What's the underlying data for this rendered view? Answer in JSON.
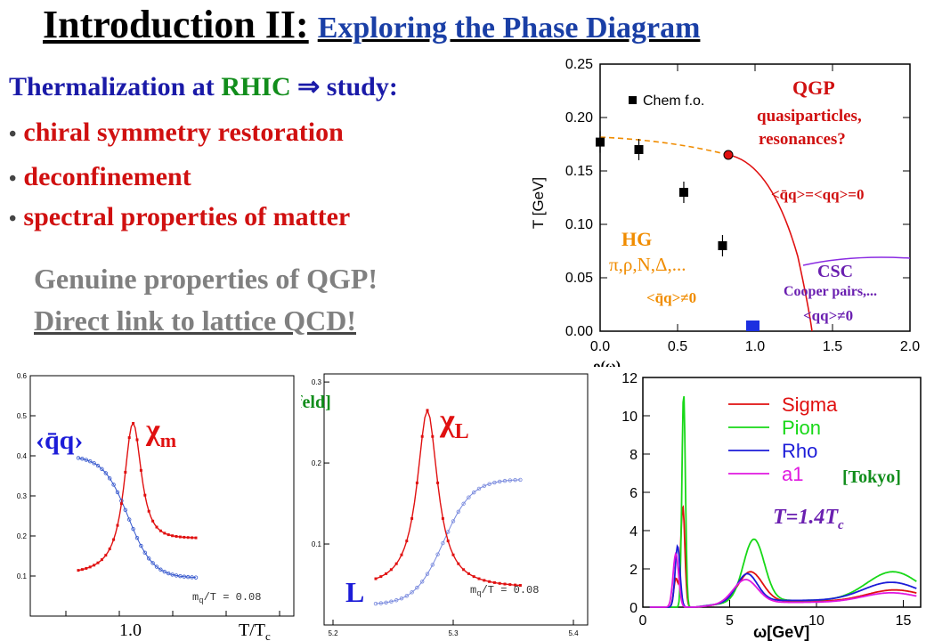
{
  "title": {
    "main": "Introduction II:",
    "sub": "Exploring the Phase Diagram"
  },
  "intro": {
    "heading_a": "Thermalization at ",
    "heading_rhic": "RHIC",
    "heading_arrow": "⇒",
    "heading_b": " study:",
    "bullets": [
      "chiral symmetry restoration",
      "deconfinement",
      "spectral properties of matter"
    ],
    "gray_lines": [
      "Genuine properties of QGP!",
      "Direct link to lattice QCD!"
    ]
  },
  "phase": {
    "ylabel": "T [GeV]",
    "xlabel": "ρ(ω)",
    "legend": "Chem f.o.",
    "qgp": "QGP",
    "qgp_sub1": "quasiparticles,",
    "qgp_sub2": "resonances?",
    "qgp_cond": "<q̄q>=<qq>=0",
    "hg": "HG",
    "hg_sub": "π,ρ,N,Δ,...",
    "hg_cond": "<q̄q>≠0",
    "csc": "CSC",
    "csc_sub": "Cooper pairs,...",
    "csc_cond": "<qq>≠0",
    "colors": {
      "qgp": "#d01010",
      "hg": "#f08c00",
      "csc": "#6a1fb0"
    }
  },
  "lattice_left": {
    "cond_label": "‹q̄q›",
    "chi_label": "χ",
    "chi_sub": "m",
    "mass_note": "m",
    "mass_note_sub": "q",
    "mass_note_rest": "/T = 0.08",
    "x_tick": "1.0",
    "x_label": "T/T",
    "x_label_sub": "c"
  },
  "lattice_mid": {
    "source": "[Bielefeld]",
    "chi_label": "χ",
    "chi_sub": "L",
    "poly_label": "L",
    "mass_note": "m",
    "mass_note_sub": "q",
    "mass_note_rest": "/T = 0.08"
  },
  "spectral": {
    "source": "[Tokyo]",
    "temp": "T=1.4T",
    "temp_sub": "c",
    "xlabel": "ω[GeV]",
    "legend": [
      {
        "name": "Sigma",
        "color": "#e01010"
      },
      {
        "name": "Pion",
        "color": "#18d818"
      },
      {
        "name": "Rho",
        "color": "#1c1cd8"
      },
      {
        "name": "a1",
        "color": "#e018e0"
      }
    ]
  },
  "chart_data": [
    {
      "type": "scatter",
      "ylabel": "T [GeV]",
      "x_ticks": [
        "0.0",
        "0.5",
        "1.0",
        "1.5",
        "2.0"
      ],
      "y_ticks": [
        "0.00",
        "0.05",
        "0.10",
        "0.15",
        "0.20",
        "0.25"
      ],
      "xlim": [
        0,
        2.0
      ],
      "ylim": [
        0,
        0.25
      ],
      "series": [
        {
          "name": "Chem f.o.",
          "points": [
            [
              0.0,
              0.177
            ],
            [
              0.25,
              0.17
            ],
            [
              0.54,
              0.13
            ],
            [
              0.79,
              0.08
            ]
          ]
        }
      ],
      "critical_point": [
        0.73,
        0.165
      ],
      "csc_marker": [
        0.98,
        0.004
      ]
    },
    {
      "type": "line",
      "x_ticks": [
        "1.0"
      ],
      "y_ticks": [
        "0.1",
        "0.2",
        "0.3",
        "0.4",
        "0.5",
        "0.6"
      ],
      "ylim": [
        0,
        0.6
      ],
      "series": [
        {
          "name": "χm",
          "peak_y": 0.48
        },
        {
          "name": "‹q̄q›",
          "start_y": 0.4,
          "end_y": 0.095
        }
      ]
    },
    {
      "type": "line",
      "x_ticks": [
        "5.2",
        "5.3",
        "5.4"
      ],
      "y_ticks": [
        "0.1",
        "0.2",
        "0.3"
      ],
      "ylim": [
        0,
        0.3
      ],
      "series": [
        {
          "name": "χL",
          "peak_y": 0.265
        },
        {
          "name": "L",
          "end_y": 0.18
        }
      ]
    },
    {
      "type": "line",
      "xlabel": "ω[GeV]",
      "x_ticks": [
        "0",
        "5",
        "10",
        "15"
      ],
      "y_ticks": [
        "0",
        "2",
        "4",
        "6",
        "8",
        "10",
        "12"
      ],
      "xlim": [
        0,
        16
      ],
      "ylim": [
        0,
        12
      ],
      "series": [
        {
          "name": "Sigma"
        },
        {
          "name": "Pion"
        },
        {
          "name": "Rho"
        },
        {
          "name": "a1"
        }
      ]
    }
  ]
}
